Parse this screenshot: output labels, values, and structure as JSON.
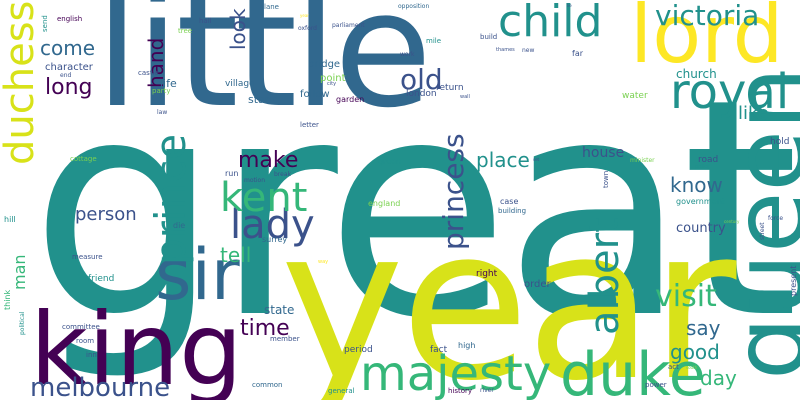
{
  "colors": {
    "background": "#ffffff",
    "purple": "#440154",
    "indigo": "#3b528b",
    "blue": "#31688e",
    "teal": "#21918c",
    "green": "#35b779",
    "lime": "#7ad151",
    "yellow": "#d8e219",
    "gold": "#fde725"
  },
  "words": [
    {
      "text": "great",
      "color": "teal"
    },
    {
      "text": "year",
      "color": "yellow"
    },
    {
      "text": "little",
      "color": "blue"
    },
    {
      "text": "queen",
      "color": "teal"
    },
    {
      "text": "lord",
      "color": "gold"
    },
    {
      "text": "king",
      "color": "purple"
    },
    {
      "text": "duke",
      "color": "green"
    },
    {
      "text": "sir",
      "color": "blue"
    },
    {
      "text": "royal",
      "color": "teal"
    },
    {
      "text": "child",
      "color": "teal"
    },
    {
      "text": "majesty",
      "color": "green"
    },
    {
      "text": "duchess",
      "color": "yellow"
    },
    {
      "text": "melbourne",
      "color": "indigo"
    },
    {
      "text": "prince",
      "color": "teal"
    },
    {
      "text": "lady",
      "color": "indigo"
    },
    {
      "text": "kent",
      "color": "green"
    },
    {
      "text": "albert",
      "color": "teal"
    },
    {
      "text": "victoria",
      "color": "teal"
    },
    {
      "text": "princess",
      "color": "indigo"
    },
    {
      "text": "visit",
      "color": "green"
    },
    {
      "text": "old",
      "color": "indigo"
    },
    {
      "text": "long",
      "color": "purple"
    },
    {
      "text": "come",
      "color": "blue"
    },
    {
      "text": "hand",
      "color": "purple"
    },
    {
      "text": "look",
      "color": "indigo"
    },
    {
      "text": "make",
      "color": "purple"
    },
    {
      "text": "person",
      "color": "indigo"
    },
    {
      "text": "time",
      "color": "purple"
    },
    {
      "text": "tell",
      "color": "green"
    },
    {
      "text": "place",
      "color": "teal"
    },
    {
      "text": "know",
      "color": "blue"
    },
    {
      "text": "like",
      "color": "teal"
    },
    {
      "text": "good",
      "color": "teal"
    },
    {
      "text": "say",
      "color": "blue"
    },
    {
      "text": "day",
      "color": "green"
    },
    {
      "text": "man",
      "color": "green"
    },
    {
      "text": "house",
      "color": "indigo"
    },
    {
      "text": "church",
      "color": "teal"
    },
    {
      "text": "country",
      "color": "indigo"
    },
    {
      "text": "state",
      "color": "blue"
    },
    {
      "text": "stand",
      "color": "blue"
    },
    {
      "text": "character",
      "color": "indigo"
    },
    {
      "text": "life",
      "color": "blue"
    },
    {
      "text": "bridge",
      "color": "blue"
    },
    {
      "text": "follow",
      "color": "blue"
    },
    {
      "text": "point",
      "color": "lime"
    },
    {
      "text": "village",
      "color": "blue"
    },
    {
      "text": "london",
      "color": "indigo"
    },
    {
      "text": "return",
      "color": "indigo"
    },
    {
      "text": "garden",
      "color": "purple"
    },
    {
      "text": "water",
      "color": "lime"
    },
    {
      "text": "hold",
      "color": "indigo"
    },
    {
      "text": "road",
      "color": "indigo"
    },
    {
      "text": "order",
      "color": "indigo"
    },
    {
      "text": "right",
      "color": "purple"
    },
    {
      "text": "fact",
      "color": "indigo"
    },
    {
      "text": "high",
      "color": "blue"
    },
    {
      "text": "period",
      "color": "indigo"
    },
    {
      "text": "friend",
      "color": "teal"
    },
    {
      "text": "surrey",
      "color": "blue"
    },
    {
      "text": "measure",
      "color": "indigo"
    },
    {
      "text": "green",
      "color": "teal"
    },
    {
      "text": "england",
      "color": "lime"
    },
    {
      "text": "case",
      "color": "indigo"
    },
    {
      "text": "building",
      "color": "blue"
    },
    {
      "text": "government",
      "color": "teal"
    },
    {
      "text": "present",
      "color": "indigo"
    },
    {
      "text": "die",
      "color": "blue"
    },
    {
      "text": "run",
      "color": "indigo"
    },
    {
      "text": "inn",
      "color": "indigo"
    },
    {
      "text": "room",
      "color": "indigo"
    },
    {
      "text": "committee",
      "color": "indigo"
    },
    {
      "text": "member",
      "color": "indigo"
    },
    {
      "text": "general",
      "color": "teal"
    },
    {
      "text": "common",
      "color": "blue"
    },
    {
      "text": "history",
      "color": "purple"
    },
    {
      "text": "power",
      "color": "indigo"
    },
    {
      "text": "river",
      "color": "indigo"
    },
    {
      "text": "act",
      "color": "indigo"
    },
    {
      "text": "hill",
      "color": "teal"
    },
    {
      "text": "think",
      "color": "green"
    },
    {
      "text": "political",
      "color": "teal"
    },
    {
      "text": "cottage",
      "color": "lime"
    },
    {
      "text": "letter",
      "color": "indigo"
    },
    {
      "text": "motion",
      "color": "indigo"
    },
    {
      "text": "break",
      "color": "indigo"
    },
    {
      "text": "party",
      "color": "lime"
    },
    {
      "text": "castle",
      "color": "indigo"
    },
    {
      "text": "end",
      "color": "indigo"
    },
    {
      "text": "send",
      "color": "teal"
    },
    {
      "text": "english",
      "color": "purple"
    },
    {
      "text": "tree",
      "color": "lime"
    },
    {
      "text": "hall",
      "color": "indigo"
    },
    {
      "text": "lane",
      "color": "blue"
    },
    {
      "text": "oxford",
      "color": "indigo"
    },
    {
      "text": "parliament",
      "color": "indigo"
    },
    {
      "text": "opposition",
      "color": "blue"
    },
    {
      "text": "mile",
      "color": "teal"
    },
    {
      "text": "work",
      "color": "indigo"
    },
    {
      "text": "build",
      "color": "indigo"
    },
    {
      "text": "thames",
      "color": "indigo"
    },
    {
      "text": "new",
      "color": "indigo"
    },
    {
      "text": "far",
      "color": "indigo"
    },
    {
      "text": "city",
      "color": "indigo"
    },
    {
      "text": "wall",
      "color": "indigo"
    },
    {
      "text": "law",
      "color": "indigo"
    },
    {
      "text": "minister",
      "color": "lime"
    },
    {
      "text": "policy",
      "color": "teal"
    },
    {
      "text": "town",
      "color": "indigo"
    },
    {
      "text": "street",
      "color": "indigo"
    },
    {
      "text": "force",
      "color": "indigo"
    },
    {
      "text": "century",
      "color": "lime"
    },
    {
      "text": "way",
      "color": "gold"
    },
    {
      "text": "set",
      "color": "indigo"
    },
    {
      "text": "south",
      "color": "lime"
    },
    {
      "text": "year",
      "color": "gold"
    },
    {
      "text": "lie",
      "color": "indigo"
    }
  ]
}
